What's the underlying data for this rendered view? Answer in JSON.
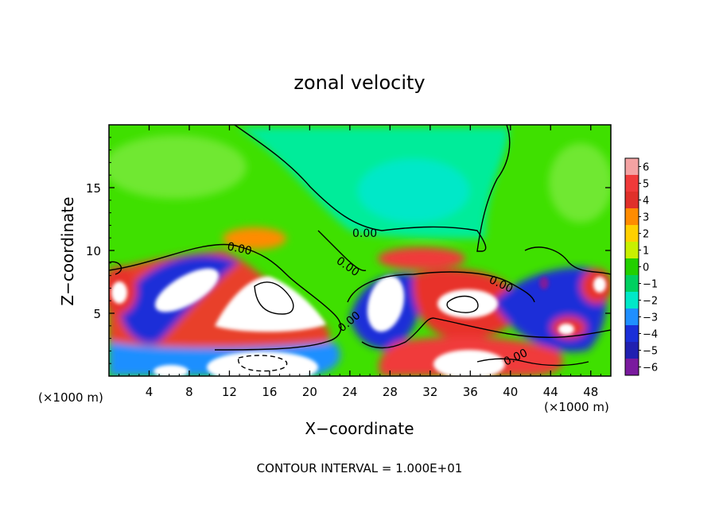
{
  "chart_data": {
    "type": "heatmap",
    "title": "zonal velocity",
    "xlabel": "X−coordinate",
    "ylabel": "Z−coordinate",
    "x_unit_left": "(×1000 m)",
    "x_unit_right": "(×1000 m)",
    "footer": "CONTOUR INTERVAL = 1.000E+01",
    "xlim": [
      0,
      50
    ],
    "ylim": [
      0,
      20
    ],
    "x_ticks": [
      4,
      8,
      12,
      16,
      20,
      24,
      28,
      32,
      36,
      40,
      44,
      48
    ],
    "x_tick_labels": [
      "4",
      "8",
      "12",
      "16",
      "20",
      "24",
      "28",
      "32",
      "36",
      "40",
      "44",
      "48"
    ],
    "y_ticks": [
      5,
      10,
      15
    ],
    "y_tick_labels": [
      "5",
      "10",
      "15"
    ],
    "colorbar": {
      "range": [
        -6,
        6
      ],
      "tick_labels": [
        "6",
        "5",
        "4",
        "3",
        "2",
        "1",
        "0",
        "−1",
        "−2",
        "−3",
        "−4",
        "−5",
        "−6"
      ],
      "colors": [
        "#f4a3a3",
        "#f03a3a",
        "#e0302a",
        "#ff8c00",
        "#ffd000",
        "#c8f000",
        "#22d000",
        "#00d060",
        "#00e8c8",
        "#1f8fff",
        "#1a2fd8",
        "#2020b0",
        "#7a1a9e"
      ]
    },
    "contour_labels": [
      "0.00",
      "0.00",
      "0.00",
      "0.00",
      "0.00",
      "0.00"
    ],
    "contour_interval": 10
  }
}
